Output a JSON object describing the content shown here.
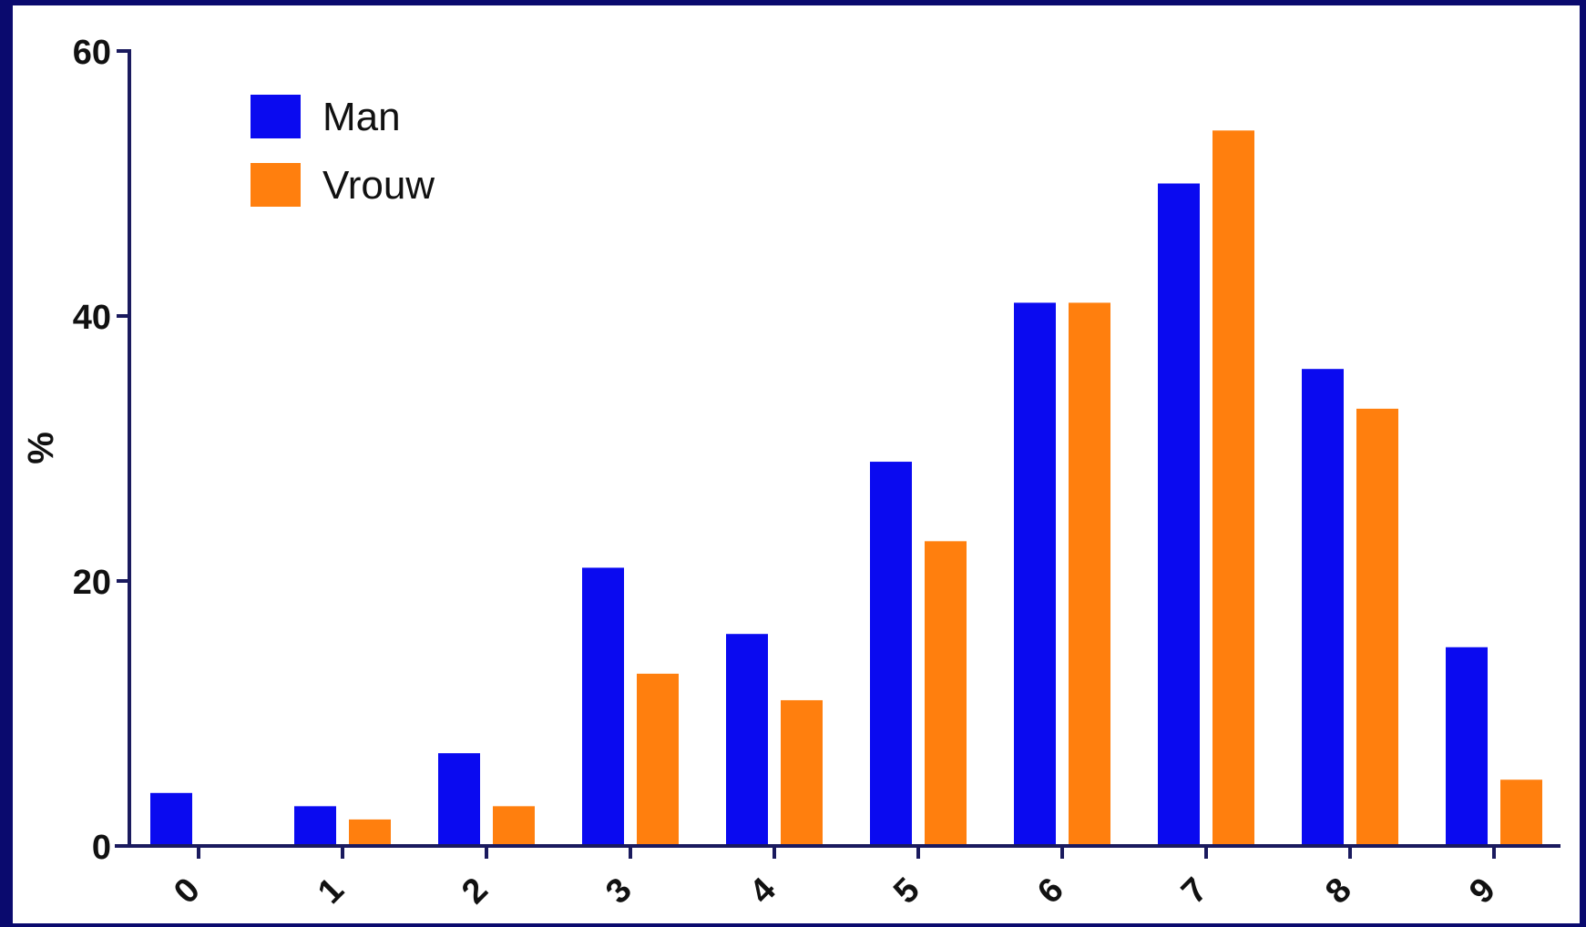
{
  "chart_data": {
    "type": "bar",
    "title": "",
    "xlabel": "",
    "ylabel": "%",
    "ylim": [
      0,
      60
    ],
    "yticks": [
      "0",
      "20",
      "40",
      "60"
    ],
    "categories": [
      "0",
      "1",
      "2",
      "3",
      "4",
      "5",
      "6",
      "7",
      "8",
      "9"
    ],
    "series": [
      {
        "name": "Man",
        "color": "#0a0af0",
        "values": [
          4,
          3,
          7,
          21,
          16,
          29,
          41,
          50,
          36,
          15
        ]
      },
      {
        "name": "Vrouw",
        "color": "#ff7f0e",
        "values": [
          0,
          2,
          3,
          13,
          11,
          23,
          41,
          54,
          33,
          5
        ]
      }
    ],
    "legend": "top-left",
    "grid": false
  },
  "colors": {
    "background": "#0a0a6e",
    "plot": "#ffffff",
    "axis": "#1a1a5e"
  }
}
